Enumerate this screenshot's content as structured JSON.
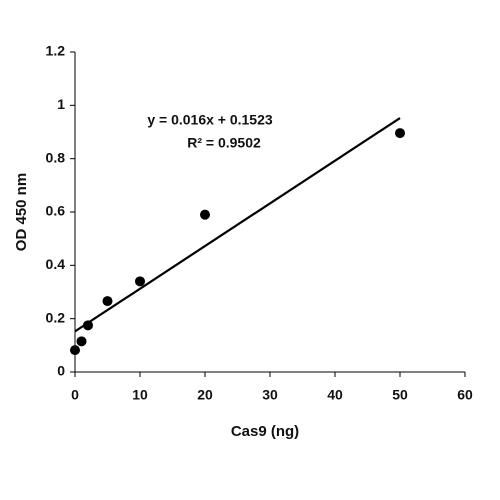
{
  "chart_data": {
    "type": "scatter",
    "x_label": "Cas9 (ng)",
    "y_label": "OD 450 nm",
    "x": [
      0,
      1,
      2,
      5,
      10,
      20,
      50
    ],
    "values": [
      0.082,
      0.115,
      0.175,
      0.266,
      0.34,
      0.59,
      0.896
    ],
    "color": "#000000",
    "trendline": {
      "x": [
        0,
        50
      ],
      "values": [
        0.1523,
        0.9523
      ],
      "color": "#000000"
    },
    "annotations": [
      "y = 0.016x + 0.1523",
      "R² = 0.9502"
    ],
    "xlim": [
      0,
      60
    ],
    "xticks": [
      0,
      10,
      20,
      30,
      40,
      50,
      60
    ],
    "ylim": [
      0,
      1.2
    ],
    "yticks": [
      0,
      0.2,
      0.4,
      0.6,
      0.8,
      1,
      1.2
    ],
    "grid": false
  }
}
